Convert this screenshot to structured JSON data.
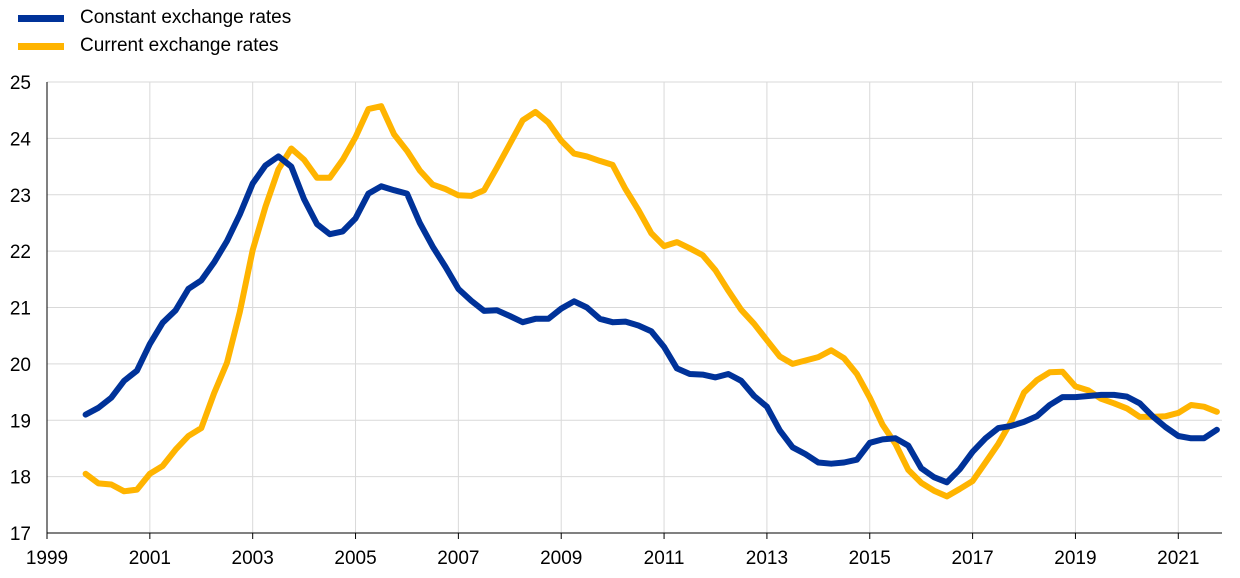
{
  "chart_data": {
    "type": "line",
    "title": "",
    "xlabel": "",
    "ylabel": "",
    "xlim": [
      1999,
      2021.85
    ],
    "ylim": [
      17,
      25
    ],
    "x_ticks": [
      1999,
      2001,
      2003,
      2005,
      2007,
      2009,
      2011,
      2013,
      2015,
      2017,
      2019,
      2021
    ],
    "y_ticks": [
      17,
      18,
      19,
      20,
      21,
      22,
      23,
      24,
      25
    ],
    "grid": "vertical and horizontal",
    "legend_position": "top-left",
    "series": [
      {
        "name": "Constant exchange rates",
        "color": "#003299",
        "x": [
          1999.75,
          2000.0,
          2000.25,
          2000.5,
          2000.75,
          2001.0,
          2001.25,
          2001.5,
          2001.75,
          2002.0,
          2002.25,
          2002.5,
          2002.75,
          2003.0,
          2003.25,
          2003.5,
          2003.75,
          2004.0,
          2004.25,
          2004.5,
          2004.75,
          2005.0,
          2005.25,
          2005.5,
          2005.75,
          2006.0,
          2006.25,
          2006.5,
          2006.75,
          2007.0,
          2007.25,
          2007.5,
          2007.75,
          2008.0,
          2008.25,
          2008.5,
          2008.75,
          2009.0,
          2009.25,
          2009.5,
          2009.75,
          2010.0,
          2010.25,
          2010.5,
          2010.75,
          2011.0,
          2011.25,
          2011.5,
          2011.75,
          2012.0,
          2012.25,
          2012.5,
          2012.75,
          2013.0,
          2013.25,
          2013.5,
          2013.75,
          2014.0,
          2014.25,
          2014.5,
          2014.75,
          2015.0,
          2015.25,
          2015.5,
          2015.75,
          2016.0,
          2016.25,
          2016.5,
          2016.75,
          2017.0,
          2017.25,
          2017.5,
          2017.75,
          2018.0,
          2018.25,
          2018.5,
          2018.75,
          2019.0,
          2019.25,
          2019.5,
          2019.75,
          2020.0,
          2020.25,
          2020.5,
          2020.75,
          2021.0,
          2021.25,
          2021.5,
          2021.75
        ],
        "y": [
          19.1,
          19.22,
          19.4,
          19.7,
          19.88,
          20.35,
          20.73,
          20.95,
          21.33,
          21.48,
          21.8,
          22.18,
          22.65,
          23.2,
          23.52,
          23.68,
          23.5,
          22.92,
          22.48,
          22.3,
          22.35,
          22.58,
          23.02,
          23.15,
          23.08,
          23.02,
          22.5,
          22.08,
          21.72,
          21.33,
          21.12,
          20.94,
          20.95,
          20.85,
          20.74,
          20.8,
          20.8,
          20.98,
          21.11,
          21.0,
          20.8,
          20.74,
          20.75,
          20.68,
          20.58,
          20.3,
          19.92,
          19.82,
          19.81,
          19.76,
          19.82,
          19.7,
          19.43,
          19.24,
          18.82,
          18.52,
          18.4,
          18.25,
          18.23,
          18.25,
          18.3,
          18.6,
          18.66,
          18.68,
          18.55,
          18.15,
          17.99,
          17.9,
          18.13,
          18.44,
          18.68,
          18.86,
          18.9,
          18.97,
          19.07,
          19.27,
          19.41,
          19.41,
          19.43,
          19.45,
          19.45,
          19.42,
          19.3,
          19.07,
          18.88,
          18.72,
          18.68,
          18.68,
          18.83
        ]
      },
      {
        "name": "Current exchange rates",
        "color": "#FFB400",
        "x": [
          1999.75,
          2000.0,
          2000.25,
          2000.5,
          2000.75,
          2001.0,
          2001.25,
          2001.5,
          2001.75,
          2002.0,
          2002.25,
          2002.5,
          2002.75,
          2003.0,
          2003.25,
          2003.5,
          2003.75,
          2004.0,
          2004.25,
          2004.5,
          2004.75,
          2005.0,
          2005.25,
          2005.5,
          2005.75,
          2006.0,
          2006.25,
          2006.5,
          2006.75,
          2007.0,
          2007.25,
          2007.5,
          2007.75,
          2008.0,
          2008.25,
          2008.5,
          2008.75,
          2009.0,
          2009.25,
          2009.5,
          2009.75,
          2010.0,
          2010.25,
          2010.5,
          2010.75,
          2011.0,
          2011.25,
          2011.5,
          2011.75,
          2012.0,
          2012.25,
          2012.5,
          2012.75,
          2013.0,
          2013.25,
          2013.5,
          2013.75,
          2014.0,
          2014.25,
          2014.5,
          2014.75,
          2015.0,
          2015.25,
          2015.5,
          2015.75,
          2016.0,
          2016.25,
          2016.5,
          2016.75,
          2017.0,
          2017.25,
          2017.5,
          2017.75,
          2018.0,
          2018.25,
          2018.5,
          2018.75,
          2019.0,
          2019.25,
          2019.5,
          2019.75,
          2020.0,
          2020.25,
          2020.5,
          2020.75,
          2021.0,
          2021.25,
          2021.5,
          2021.75
        ],
        "y": [
          18.05,
          17.88,
          17.86,
          17.74,
          17.77,
          18.05,
          18.19,
          18.48,
          18.72,
          18.86,
          19.48,
          20.02,
          20.92,
          22.02,
          22.79,
          23.45,
          23.82,
          23.62,
          23.3,
          23.3,
          23.62,
          24.02,
          24.52,
          24.57,
          24.07,
          23.78,
          23.43,
          23.18,
          23.1,
          22.99,
          22.98,
          23.08,
          23.48,
          23.9,
          24.32,
          24.47,
          24.28,
          23.96,
          23.73,
          23.68,
          23.6,
          23.53,
          23.1,
          22.73,
          22.32,
          22.09,
          22.16,
          22.05,
          21.93,
          21.66,
          21.3,
          20.96,
          20.71,
          20.42,
          20.13,
          20.0,
          20.06,
          20.12,
          20.24,
          20.1,
          19.82,
          19.4,
          18.92,
          18.58,
          18.12,
          17.89,
          17.75,
          17.65,
          17.78,
          17.92,
          18.25,
          18.58,
          18.98,
          19.49,
          19.71,
          19.85,
          19.86,
          19.6,
          19.53,
          19.38,
          19.3,
          19.21,
          19.06,
          19.06,
          19.07,
          19.13,
          19.27,
          19.24,
          19.15
        ]
      }
    ]
  }
}
